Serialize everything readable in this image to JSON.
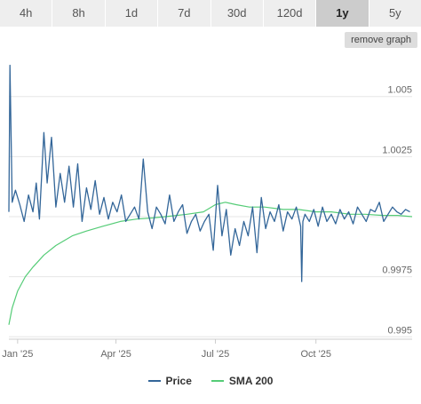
{
  "tabs": [
    "4h",
    "8h",
    "1d",
    "7d",
    "30d",
    "120d",
    "1y",
    "5y"
  ],
  "active_tab": "1y",
  "remove_graph_label": "remove graph",
  "chart_data": {
    "type": "line",
    "x_unit": "date",
    "x_range": [
      "2024-12-24",
      "2025-12-28"
    ],
    "x_ticks": [
      {
        "date": "2025-01-01",
        "label": "Jan '25"
      },
      {
        "date": "2025-04-01",
        "label": "Apr '25"
      },
      {
        "date": "2025-07-01",
        "label": "Jul '25"
      },
      {
        "date": "2025-10-01",
        "label": "Oct '25"
      }
    ],
    "y_ticks": [
      {
        "value": 0.995,
        "label": "0.995"
      },
      {
        "value": 0.9975,
        "label": "0.9975"
      },
      {
        "value": 1.0,
        "label": ""
      },
      {
        "value": 1.0025,
        "label": "1.0025"
      },
      {
        "value": 1.005,
        "label": "1.005"
      }
    ],
    "ylim": [
      0.9949,
      1.0068
    ],
    "grid": true,
    "legend_position": "bottom",
    "series": [
      {
        "name": "Price",
        "color": "#336699",
        "x": [
          "2024-12-24",
          "2024-12-25",
          "2024-12-27",
          "2024-12-30",
          "2025-01-03",
          "2025-01-07",
          "2025-01-11",
          "2025-01-15",
          "2025-01-18",
          "2025-01-21",
          "2025-01-25",
          "2025-01-28",
          "2025-02-01",
          "2025-02-05",
          "2025-02-09",
          "2025-02-13",
          "2025-02-17",
          "2025-02-21",
          "2025-02-25",
          "2025-03-01",
          "2025-03-05",
          "2025-03-09",
          "2025-03-13",
          "2025-03-17",
          "2025-03-21",
          "2025-03-25",
          "2025-03-29",
          "2025-04-02",
          "2025-04-06",
          "2025-04-10",
          "2025-04-14",
          "2025-04-18",
          "2025-04-22",
          "2025-04-26",
          "2025-04-30",
          "2025-05-04",
          "2025-05-08",
          "2025-05-12",
          "2025-05-16",
          "2025-05-20",
          "2025-05-24",
          "2025-05-28",
          "2025-06-01",
          "2025-06-05",
          "2025-06-09",
          "2025-06-13",
          "2025-06-17",
          "2025-06-21",
          "2025-06-25",
          "2025-06-29",
          "2025-07-03",
          "2025-07-07",
          "2025-07-11",
          "2025-07-15",
          "2025-07-19",
          "2025-07-23",
          "2025-07-27",
          "2025-07-31",
          "2025-08-04",
          "2025-08-08",
          "2025-08-12",
          "2025-08-16",
          "2025-08-20",
          "2025-08-24",
          "2025-08-28",
          "2025-09-01",
          "2025-09-05",
          "2025-09-09",
          "2025-09-13",
          "2025-09-17",
          "2025-09-18",
          "2025-09-19",
          "2025-09-21",
          "2025-09-25",
          "2025-09-29",
          "2025-10-03",
          "2025-10-07",
          "2025-10-11",
          "2025-10-15",
          "2025-10-19",
          "2025-10-23",
          "2025-10-27",
          "2025-10-31",
          "2025-11-04",
          "2025-11-08",
          "2025-11-12",
          "2025-11-16",
          "2025-11-20",
          "2025-11-24",
          "2025-11-28",
          "2025-12-02",
          "2025-12-06",
          "2025-12-10",
          "2025-12-14",
          "2025-12-18",
          "2025-12-22",
          "2025-12-26"
        ],
        "values": [
          1.0002,
          1.0063,
          1.0006,
          1.0011,
          1.0005,
          0.9998,
          1.0009,
          1.0002,
          1.0014,
          0.9999,
          1.0035,
          1.0014,
          1.0033,
          1.0004,
          1.0018,
          1.0006,
          1.0021,
          1.0004,
          1.0022,
          0.9998,
          1.0012,
          1.0003,
          1.0015,
          1.0001,
          1.0008,
          0.9999,
          1.0006,
          1.0002,
          1.0009,
          0.9998,
          1.0001,
          1.0004,
          0.9999,
          1.0024,
          1.0002,
          0.9995,
          1.0004,
          1.0001,
          0.9997,
          1.0009,
          0.9998,
          1.0002,
          1.0005,
          0.9993,
          0.9998,
          1.0001,
          0.9994,
          0.9998,
          1.0001,
          0.9986,
          1.0013,
          0.9992,
          1.0003,
          0.9984,
          0.9995,
          0.9988,
          0.9998,
          0.9992,
          1.0004,
          0.9985,
          1.0008,
          0.9995,
          1.0002,
          0.9998,
          1.0005,
          0.9994,
          1.0002,
          0.9999,
          1.0004,
          0.9996,
          0.9973,
          0.9998,
          1.0001,
          0.9998,
          1.0003,
          0.9996,
          1.0004,
          0.9998,
          1.0001,
          0.9997,
          1.0003,
          0.9999,
          1.0002,
          0.9997,
          1.0004,
          1.0001,
          0.9998,
          1.0003,
          1.0002,
          1.0006,
          0.9998,
          1.0001,
          1.0004,
          1.0002,
          1.0001,
          1.0003,
          1.0002
        ]
      },
      {
        "name": "SMA 200",
        "color": "#55cc77",
        "x": [
          "2024-12-24",
          "2024-12-27",
          "2025-01-01",
          "2025-01-08",
          "2025-01-15",
          "2025-01-25",
          "2025-02-05",
          "2025-02-20",
          "2025-03-05",
          "2025-03-20",
          "2025-04-05",
          "2025-04-20",
          "2025-05-05",
          "2025-05-20",
          "2025-06-05",
          "2025-06-20",
          "2025-07-01",
          "2025-07-10",
          "2025-07-20",
          "2025-08-01",
          "2025-08-15",
          "2025-09-01",
          "2025-09-15",
          "2025-10-01",
          "2025-10-15",
          "2025-11-01",
          "2025-11-15",
          "2025-12-01",
          "2025-12-15",
          "2025-12-28"
        ],
        "values": [
          0.9955,
          0.9962,
          0.9969,
          0.9975,
          0.9979,
          0.9984,
          0.9988,
          0.9992,
          0.9994,
          0.9996,
          0.9998,
          0.9999,
          0.99995,
          1.00002,
          1.0001,
          1.0002,
          1.0005,
          1.0006,
          1.0005,
          1.0004,
          1.0004,
          1.0003,
          1.0003,
          1.0002,
          1.0002,
          1.0001,
          1.0001,
          1.00005,
          1.00005,
          1.0
        ]
      }
    ]
  }
}
